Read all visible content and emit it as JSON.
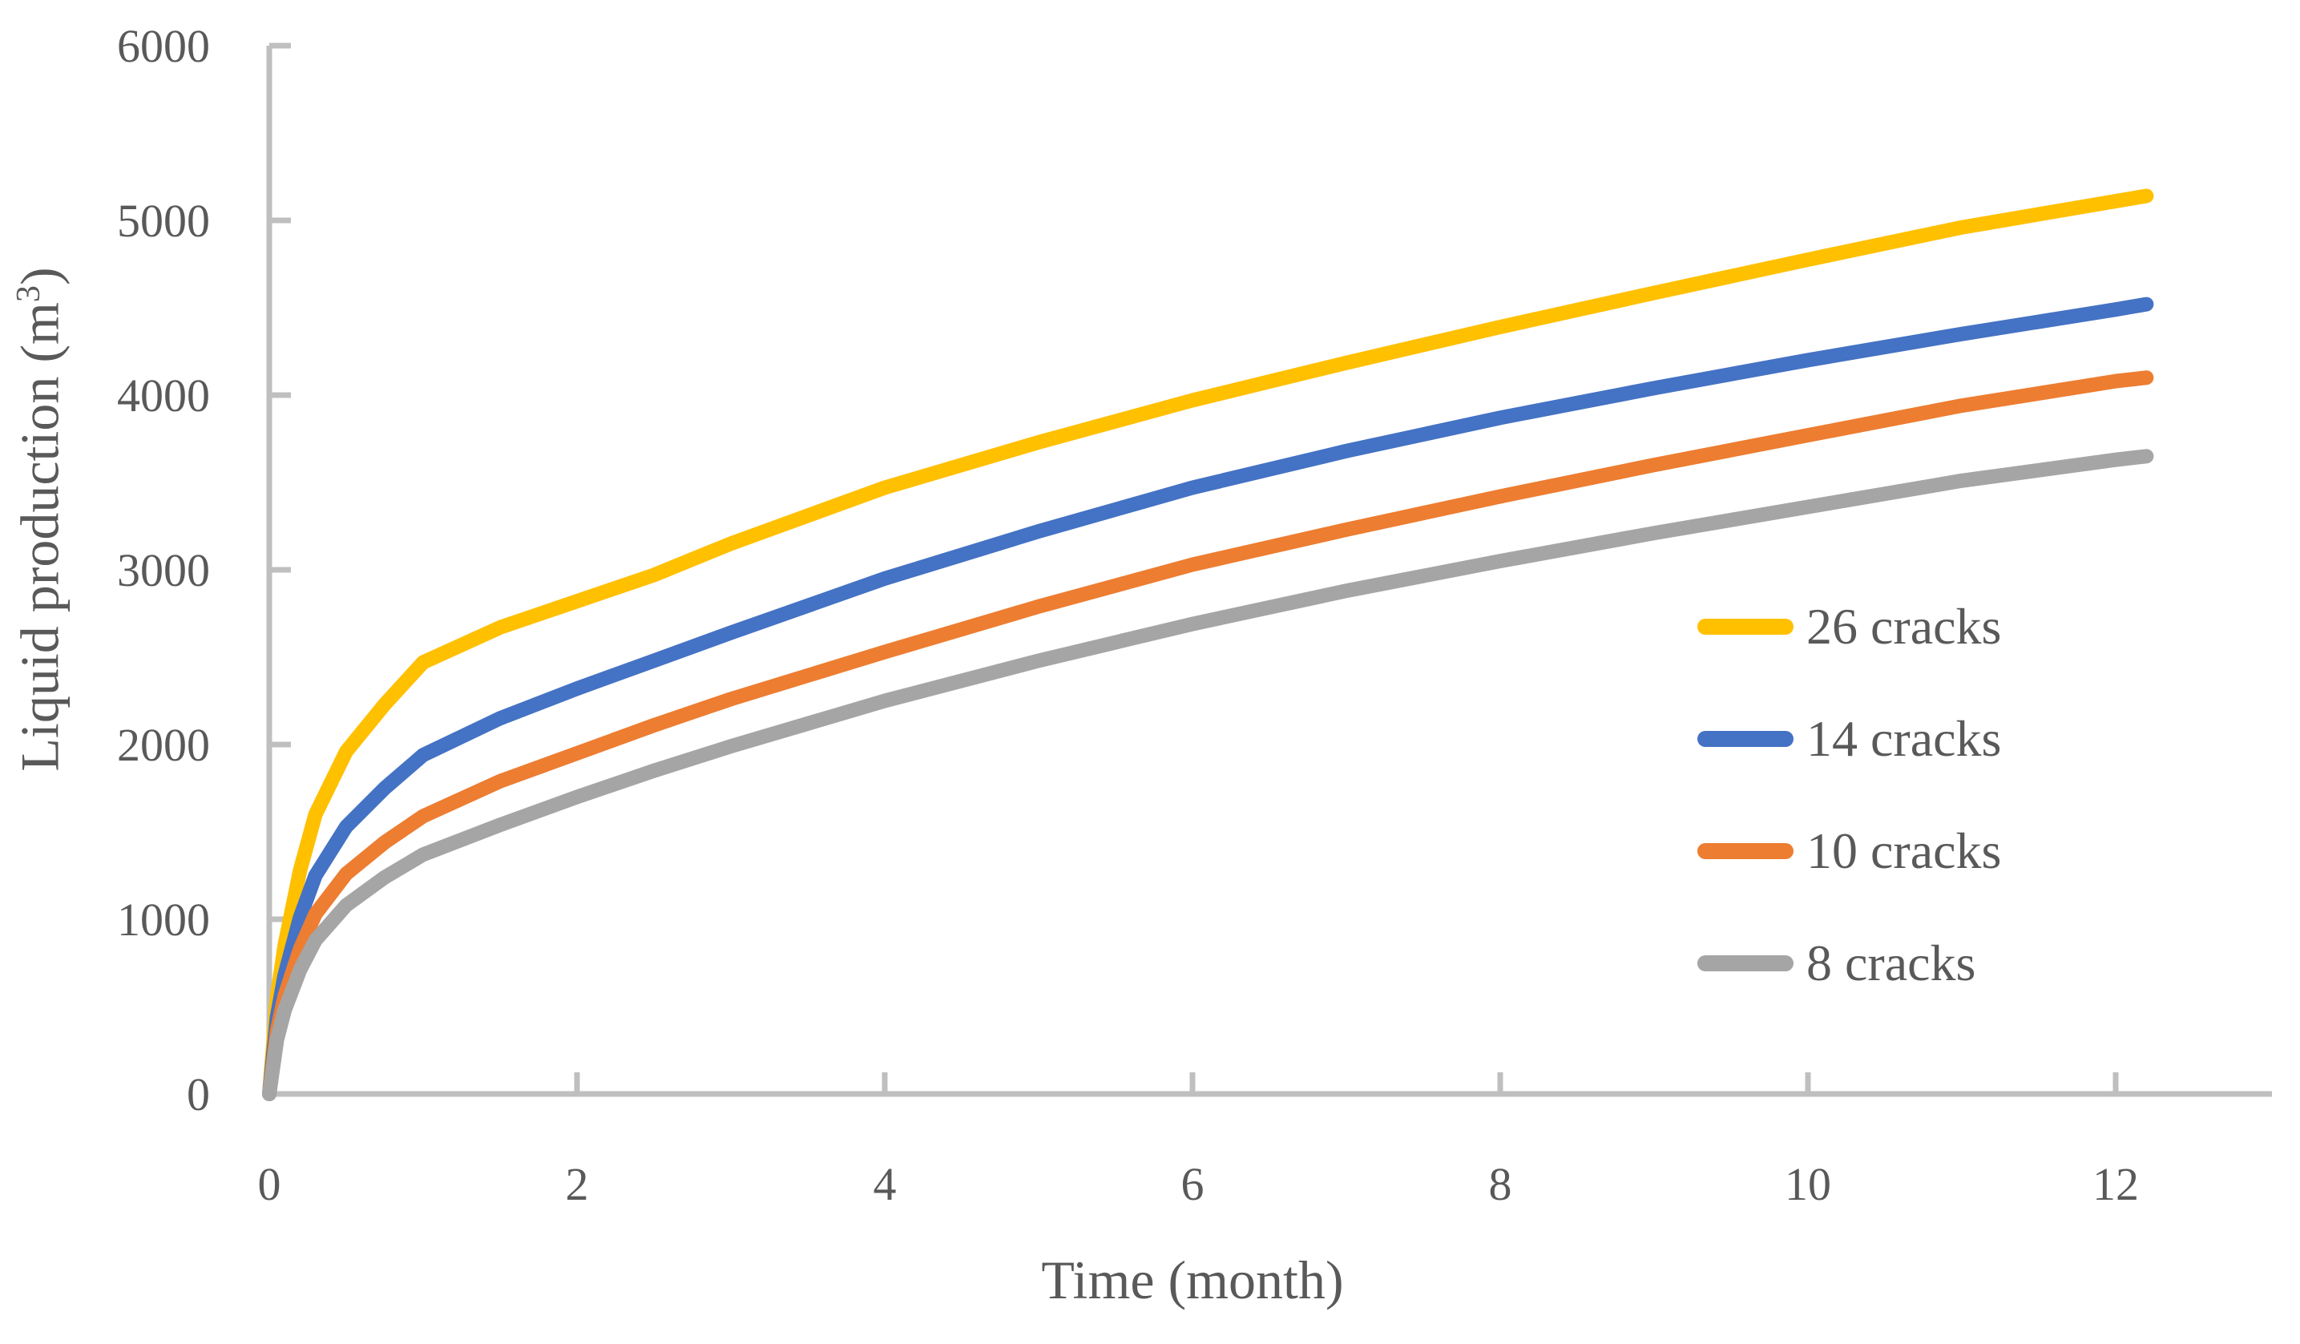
{
  "chart_data": {
    "type": "line",
    "title": "",
    "xlabel": "Time (month)",
    "ylabel": "Liquid production (m³)",
    "ylabel_parts": {
      "pre": "Liquid production (m",
      "sup": "3",
      "post": ")"
    },
    "xlim": [
      0,
      13
    ],
    "ylim": [
      0,
      6000
    ],
    "x_ticks": [
      0,
      2,
      4,
      6,
      8,
      10,
      12
    ],
    "y_ticks": [
      0,
      1000,
      2000,
      3000,
      4000,
      5000,
      6000
    ],
    "grid": false,
    "legend_position": "middle-right",
    "axis_color": "#BFBFBF",
    "text_color": "#595959",
    "series": [
      {
        "name": "26 cracks",
        "color": "#FFC000",
        "points": [
          [
            0,
            0
          ],
          [
            0.05,
            550
          ],
          [
            0.1,
            850
          ],
          [
            0.2,
            1280
          ],
          [
            0.3,
            1600
          ],
          [
            0.5,
            1960
          ],
          [
            0.75,
            2230
          ],
          [
            1,
            2470
          ],
          [
            1.5,
            2670
          ],
          [
            2,
            2820
          ],
          [
            2.5,
            2970
          ],
          [
            3,
            3150
          ],
          [
            4,
            3470
          ],
          [
            5,
            3730
          ],
          [
            6,
            3970
          ],
          [
            7,
            4185
          ],
          [
            8,
            4390
          ],
          [
            9,
            4585
          ],
          [
            10,
            4775
          ],
          [
            11,
            4960
          ],
          [
            12,
            5110
          ],
          [
            12.2,
            5140
          ]
        ]
      },
      {
        "name": "14 cracks",
        "color": "#4472C4",
        "points": [
          [
            0,
            0
          ],
          [
            0.05,
            440
          ],
          [
            0.1,
            680
          ],
          [
            0.2,
            1010
          ],
          [
            0.3,
            1250
          ],
          [
            0.5,
            1530
          ],
          [
            0.75,
            1750
          ],
          [
            1,
            1940
          ],
          [
            1.5,
            2150
          ],
          [
            2,
            2320
          ],
          [
            2.5,
            2480
          ],
          [
            3,
            2640
          ],
          [
            4,
            2950
          ],
          [
            5,
            3220
          ],
          [
            6,
            3470
          ],
          [
            7,
            3680
          ],
          [
            8,
            3870
          ],
          [
            9,
            4040
          ],
          [
            10,
            4200
          ],
          [
            11,
            4350
          ],
          [
            12,
            4490
          ],
          [
            12.2,
            4520
          ]
        ]
      },
      {
        "name": "10 cracks",
        "color": "#ED7D31",
        "points": [
          [
            0,
            0
          ],
          [
            0.05,
            360
          ],
          [
            0.1,
            560
          ],
          [
            0.2,
            830
          ],
          [
            0.3,
            1030
          ],
          [
            0.5,
            1260
          ],
          [
            0.75,
            1440
          ],
          [
            1,
            1590
          ],
          [
            1.5,
            1790
          ],
          [
            2,
            1950
          ],
          [
            2.5,
            2110
          ],
          [
            3,
            2260
          ],
          [
            4,
            2530
          ],
          [
            5,
            2790
          ],
          [
            6,
            3030
          ],
          [
            7,
            3230
          ],
          [
            8,
            3420
          ],
          [
            9,
            3600
          ],
          [
            10,
            3770
          ],
          [
            11,
            3940
          ],
          [
            12,
            4080
          ],
          [
            12.2,
            4100
          ]
        ]
      },
      {
        "name": "8 cracks",
        "color": "#A5A5A5",
        "points": [
          [
            0,
            0
          ],
          [
            0.05,
            310
          ],
          [
            0.1,
            480
          ],
          [
            0.2,
            710
          ],
          [
            0.3,
            880
          ],
          [
            0.5,
            1080
          ],
          [
            0.75,
            1240
          ],
          [
            1,
            1370
          ],
          [
            1.5,
            1540
          ],
          [
            2,
            1700
          ],
          [
            2.5,
            1850
          ],
          [
            3,
            1990
          ],
          [
            4,
            2250
          ],
          [
            5,
            2480
          ],
          [
            6,
            2690
          ],
          [
            7,
            2880
          ],
          [
            8,
            3050
          ],
          [
            9,
            3210
          ],
          [
            10,
            3360
          ],
          [
            11,
            3510
          ],
          [
            12,
            3630
          ],
          [
            12.2,
            3650
          ]
        ]
      }
    ]
  }
}
